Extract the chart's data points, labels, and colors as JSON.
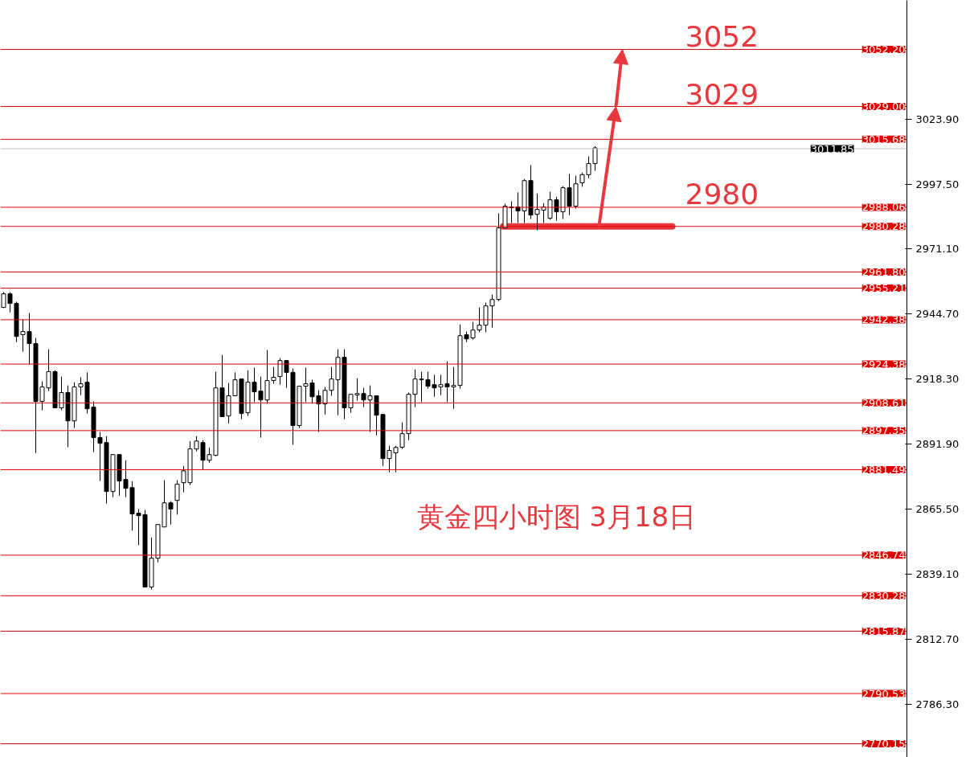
{
  "chart_data": {
    "type": "candlestick",
    "categories": [
      null,
      null,
      null,
      null,
      null,
      null,
      null,
      null,
      null,
      null,
      null,
      null,
      null,
      null,
      null,
      null,
      null,
      null,
      null,
      null,
      null,
      null,
      null,
      null,
      null,
      null,
      null,
      null,
      null,
      null,
      null,
      null,
      null,
      null,
      null,
      null,
      null,
      null,
      null,
      null,
      null,
      null,
      null,
      null,
      null,
      null,
      null,
      null,
      null,
      null,
      null,
      null,
      null,
      null,
      null,
      null,
      null,
      null,
      null,
      null,
      null,
      null,
      null,
      null,
      null,
      null,
      null,
      null,
      null,
      null,
      null,
      null,
      null,
      null,
      null,
      null,
      null,
      null,
      null,
      null,
      null,
      null,
      null,
      null,
      null,
      null,
      null,
      null,
      null,
      null,
      null,
      null,
      null,
      null,
      null,
      null,
      null,
      null,
      null,
      null,
      null,
      null,
      null,
      null,
      null,
      null,
      null,
      null,
      null,
      null,
      null,
      null,
      null,
      null,
      null,
      null,
      null,
      null,
      null,
      null,
      null,
      null,
      null,
      null,
      null,
      null,
      null,
      null,
      null,
      null,
      null,
      null,
      null,
      null,
      null,
      null,
      null,
      null,
      null,
      null,
      null
    ],
    "ohlc": [
      [
        2947.4,
        2953.6,
        2947.1,
        2952.9
      ],
      [
        2952.9,
        2953.6,
        2945.4,
        2949.0
      ],
      [
        2949.0,
        2949.7,
        2933.3,
        2935.6
      ],
      [
        2936.3,
        2942.5,
        2929.4,
        2937.6
      ],
      [
        2937.6,
        2945.1,
        2924.2,
        2932.7
      ],
      [
        2932.7,
        2935.0,
        2888.3,
        2909.2
      ],
      [
        2909.2,
        2917.3,
        2905.6,
        2915.1
      ],
      [
        2914.7,
        2930.4,
        2913.4,
        2921.3
      ],
      [
        2921.3,
        2921.9,
        2906.6,
        2906.6
      ],
      [
        2906.6,
        2919.3,
        2905.6,
        2912.8
      ],
      [
        2912.8,
        2915.7,
        2890.6,
        2901.3
      ],
      [
        2901.3,
        2917.0,
        2898.4,
        2915.1
      ],
      [
        2915.1,
        2919.0,
        2911.8,
        2916.4
      ],
      [
        2917.0,
        2921.0,
        2904.3,
        2906.2
      ],
      [
        2906.9,
        2909.2,
        2888.6,
        2894.5
      ],
      [
        2894.5,
        2896.8,
        2876.9,
        2892.2
      ],
      [
        2892.5,
        2895.1,
        2867.7,
        2872.6
      ],
      [
        2872.6,
        2887.6,
        2870.3,
        2887.6
      ],
      [
        2887.6,
        2887.6,
        2870.9,
        2876.9
      ],
      [
        2877.5,
        2885.3,
        2870.3,
        2873.9
      ],
      [
        2874.2,
        2876.8,
        2856.7,
        2863.5
      ],
      [
        2863.8,
        2865.5,
        2850.8,
        2862.8
      ],
      [
        2863.2,
        2865.1,
        2833.8,
        2833.8
      ],
      [
        2833.8,
        2854.0,
        2832.8,
        2845.5
      ],
      [
        2845.5,
        2859.2,
        2843.9,
        2859.2
      ],
      [
        2858.2,
        2877.2,
        2858.2,
        2868.0
      ],
      [
        2868.0,
        2868.7,
        2859.2,
        2865.5
      ],
      [
        2869.0,
        2877.2,
        2863.2,
        2875.6
      ],
      [
        2876.2,
        2883.0,
        2872.3,
        2881.0
      ],
      [
        2876.2,
        2893.1,
        2875.2,
        2889.9
      ],
      [
        2889.9,
        2895.1,
        2888.9,
        2893.1
      ],
      [
        2892.5,
        2893.5,
        2881.6,
        2885.3
      ],
      [
        2885.3,
        2890.5,
        2884.3,
        2887.6
      ],
      [
        2887.3,
        2921.3,
        2886.9,
        2914.7
      ],
      [
        2914.7,
        2928.1,
        2903.0,
        2903.0
      ],
      [
        2903.3,
        2916.7,
        2900.3,
        2911.5
      ],
      [
        2911.5,
        2921.0,
        2911.5,
        2918.0
      ],
      [
        2918.3,
        2918.3,
        2902.0,
        2904.3
      ],
      [
        2904.6,
        2921.9,
        2903.3,
        2917.0
      ],
      [
        2917.0,
        2922.9,
        2908.9,
        2913.1
      ],
      [
        2913.4,
        2919.3,
        2894.5,
        2909.8
      ],
      [
        2909.8,
        2930.1,
        2908.2,
        2917.7
      ],
      [
        2917.7,
        2923.2,
        2916.4,
        2919.0
      ],
      [
        2919.3,
        2926.8,
        2916.0,
        2925.8
      ],
      [
        2925.8,
        2925.8,
        2914.7,
        2921.0
      ],
      [
        2921.0,
        2922.6,
        2891.6,
        2899.4
      ],
      [
        2899.4,
        2915.4,
        2898.4,
        2915.4
      ],
      [
        2915.4,
        2922.9,
        2908.9,
        2916.4
      ],
      [
        2916.7,
        2918.0,
        2908.2,
        2911.1
      ],
      [
        2911.5,
        2913.7,
        2896.8,
        2908.2
      ],
      [
        2908.2,
        2915.1,
        2903.9,
        2913.7
      ],
      [
        2913.7,
        2923.2,
        2911.5,
        2918.3
      ],
      [
        2918.0,
        2930.4,
        2903.6,
        2927.1
      ],
      [
        2927.1,
        2930.4,
        2902.0,
        2906.6
      ],
      [
        2906.6,
        2912.1,
        2904.6,
        2912.1
      ],
      [
        2911.8,
        2918.6,
        2909.5,
        2912.4
      ],
      [
        2912.4,
        2914.7,
        2906.9,
        2909.8
      ],
      [
        2909.8,
        2915.7,
        2896.8,
        2911.5
      ],
      [
        2911.5,
        2911.5,
        2895.4,
        2903.6
      ],
      [
        2903.9,
        2903.9,
        2883.0,
        2886.0
      ],
      [
        2886.0,
        2891.2,
        2880.4,
        2889.3
      ],
      [
        2888.3,
        2891.2,
        2880.4,
        2890.5
      ],
      [
        2890.6,
        2900.7,
        2889.9,
        2896.1
      ],
      [
        2896.1,
        2912.8,
        2893.5,
        2912.1
      ],
      [
        2912.1,
        2922.2,
        2906.9,
        2918.3
      ],
      [
        2918.0,
        2921.3,
        2908.9,
        2918.3
      ],
      [
        2918.0,
        2921.3,
        2914.4,
        2915.4
      ],
      [
        2916.0,
        2920.0,
        2911.1,
        2914.7
      ],
      [
        2915.1,
        2920.0,
        2911.8,
        2916.0
      ],
      [
        2916.4,
        2925.5,
        2908.9,
        2915.1
      ],
      [
        2915.1,
        2923.2,
        2906.2,
        2915.7
      ],
      [
        2915.7,
        2940.5,
        2914.4,
        2935.9
      ],
      [
        2936.3,
        2937.6,
        2933.3,
        2934.6
      ],
      [
        2935.0,
        2941.5,
        2934.3,
        2938.2
      ],
      [
        2938.2,
        2947.4,
        2937.3,
        2940.2
      ],
      [
        2940.2,
        2949.3,
        2937.3,
        2948.0
      ],
      [
        2948.0,
        2952.6,
        2939.2,
        2950.6
      ],
      [
        2950.6,
        2985.6,
        2950.0,
        2979.7
      ],
      [
        2979.7,
        2989.5,
        2979.7,
        2988.5
      ],
      [
        2987.9,
        2990.5,
        2981.7,
        2988.2
      ],
      [
        2988.2,
        2994.1,
        2981.7,
        2986.6
      ],
      [
        2986.6,
        2999.6,
        2981.7,
        2998.9
      ],
      [
        2998.9,
        3005.2,
        2983.3,
        2984.9
      ],
      [
        2985.2,
        2993.7,
        2978.7,
        2987.2
      ],
      [
        2986.9,
        2989.8,
        2981.7,
        2988.2
      ],
      [
        2983.6,
        2994.4,
        2983.0,
        2991.1
      ],
      [
        2991.1,
        2992.4,
        2982.6,
        2986.2
      ],
      [
        2986.2,
        2996.7,
        2983.3,
        2996.0
      ],
      [
        2996.0,
        3001.6,
        2984.9,
        2988.5
      ],
      [
        2988.5,
        3000.9,
        2987.5,
        2997.6
      ],
      [
        2998.0,
        3002.2,
        2996.4,
        3001.3
      ],
      [
        3001.3,
        3008.7,
        2999.9,
        3005.8
      ],
      [
        3005.8,
        3012.9,
        3002.9,
        3012.2
      ],
      null,
      null,
      null,
      null,
      null,
      null,
      null,
      null,
      null,
      null,
      null,
      null,
      null,
      null,
      null,
      null,
      null,
      null,
      null,
      null,
      null,
      null,
      null,
      null,
      null,
      null,
      null,
      null,
      null,
      null,
      null,
      null,
      null,
      null,
      null,
      null,
      null,
      null,
      null,
      null,
      null,
      null,
      null,
      null,
      null,
      null,
      null,
      null
    ],
    "ylim": [
      2764.6,
      3072.1
    ],
    "yticks": [
      {
        "value": 3023.9,
        "label": "3023.90"
      },
      {
        "value": 2997.5,
        "label": "2997.50"
      },
      {
        "value": 2971.1,
        "label": "2971.10"
      },
      {
        "value": 2944.7,
        "label": "2944.70"
      },
      {
        "value": 2918.3,
        "label": "2918.30"
      },
      {
        "value": 2891.9,
        "label": "2891.90"
      },
      {
        "value": 2865.5,
        "label": "2865.50"
      },
      {
        "value": 2839.1,
        "label": "2839.10"
      },
      {
        "value": 2812.7,
        "label": "2812.70"
      },
      {
        "value": 2786.3,
        "label": "2786.30"
      }
    ],
    "ref_lines": [
      {
        "axis": "y",
        "value": 3052.2,
        "label": "3052.20",
        "color": "#e00000"
      },
      {
        "axis": "y",
        "value": 3029.0,
        "label": "3029.00",
        "color": "#e00000"
      },
      {
        "axis": "y",
        "value": 3015.68,
        "label": "3015.68",
        "color": "#e00000"
      },
      {
        "axis": "y",
        "value": 3011.85,
        "label": "3011.85",
        "color": "#c0c0c0"
      },
      {
        "axis": "y",
        "value": 2988.06,
        "label": "2988.06",
        "color": "#e00000"
      },
      {
        "axis": "y",
        "value": 2980.28,
        "label": "2980.28",
        "color": "#e00000"
      },
      {
        "axis": "y",
        "value": 2961.8,
        "label": "2961.80",
        "color": "#e00000"
      },
      {
        "axis": "y",
        "value": 2955.21,
        "label": "2955.21",
        "color": "#e00000"
      },
      {
        "axis": "y",
        "value": 2942.38,
        "label": "2942.38",
        "color": "#e00000"
      },
      {
        "axis": "y",
        "value": 2924.38,
        "label": "2924.38",
        "color": "#e00000"
      },
      {
        "axis": "y",
        "value": 2908.61,
        "label": "2908.61",
        "color": "#e00000"
      },
      {
        "axis": "y",
        "value": 2897.35,
        "label": "2897.35",
        "color": "#e00000"
      },
      {
        "axis": "y",
        "value": 2881.49,
        "label": "2881.49",
        "color": "#e00000"
      },
      {
        "axis": "y",
        "value": 2846.74,
        "label": "2846.74",
        "color": "#e00000"
      },
      {
        "axis": "y",
        "value": 2830.28,
        "label": "2830.28",
        "color": "#e00000"
      },
      {
        "axis": "y",
        "value": 2815.87,
        "label": "2815.87",
        "color": "#e00000"
      },
      {
        "axis": "y",
        "value": 2790.53,
        "label": "2790.53",
        "color": "#e00000"
      },
      {
        "axis": "y",
        "value": 2770.15,
        "label": "2770.15",
        "color": "#e00000"
      }
    ],
    "annotations": [
      {
        "text": "3052",
        "y": 3052.2
      },
      {
        "text": "3029",
        "y": 3029.0
      },
      {
        "text": "2980",
        "y": 2980.28
      },
      "黄金四小时图  3月18日"
    ]
  }
}
